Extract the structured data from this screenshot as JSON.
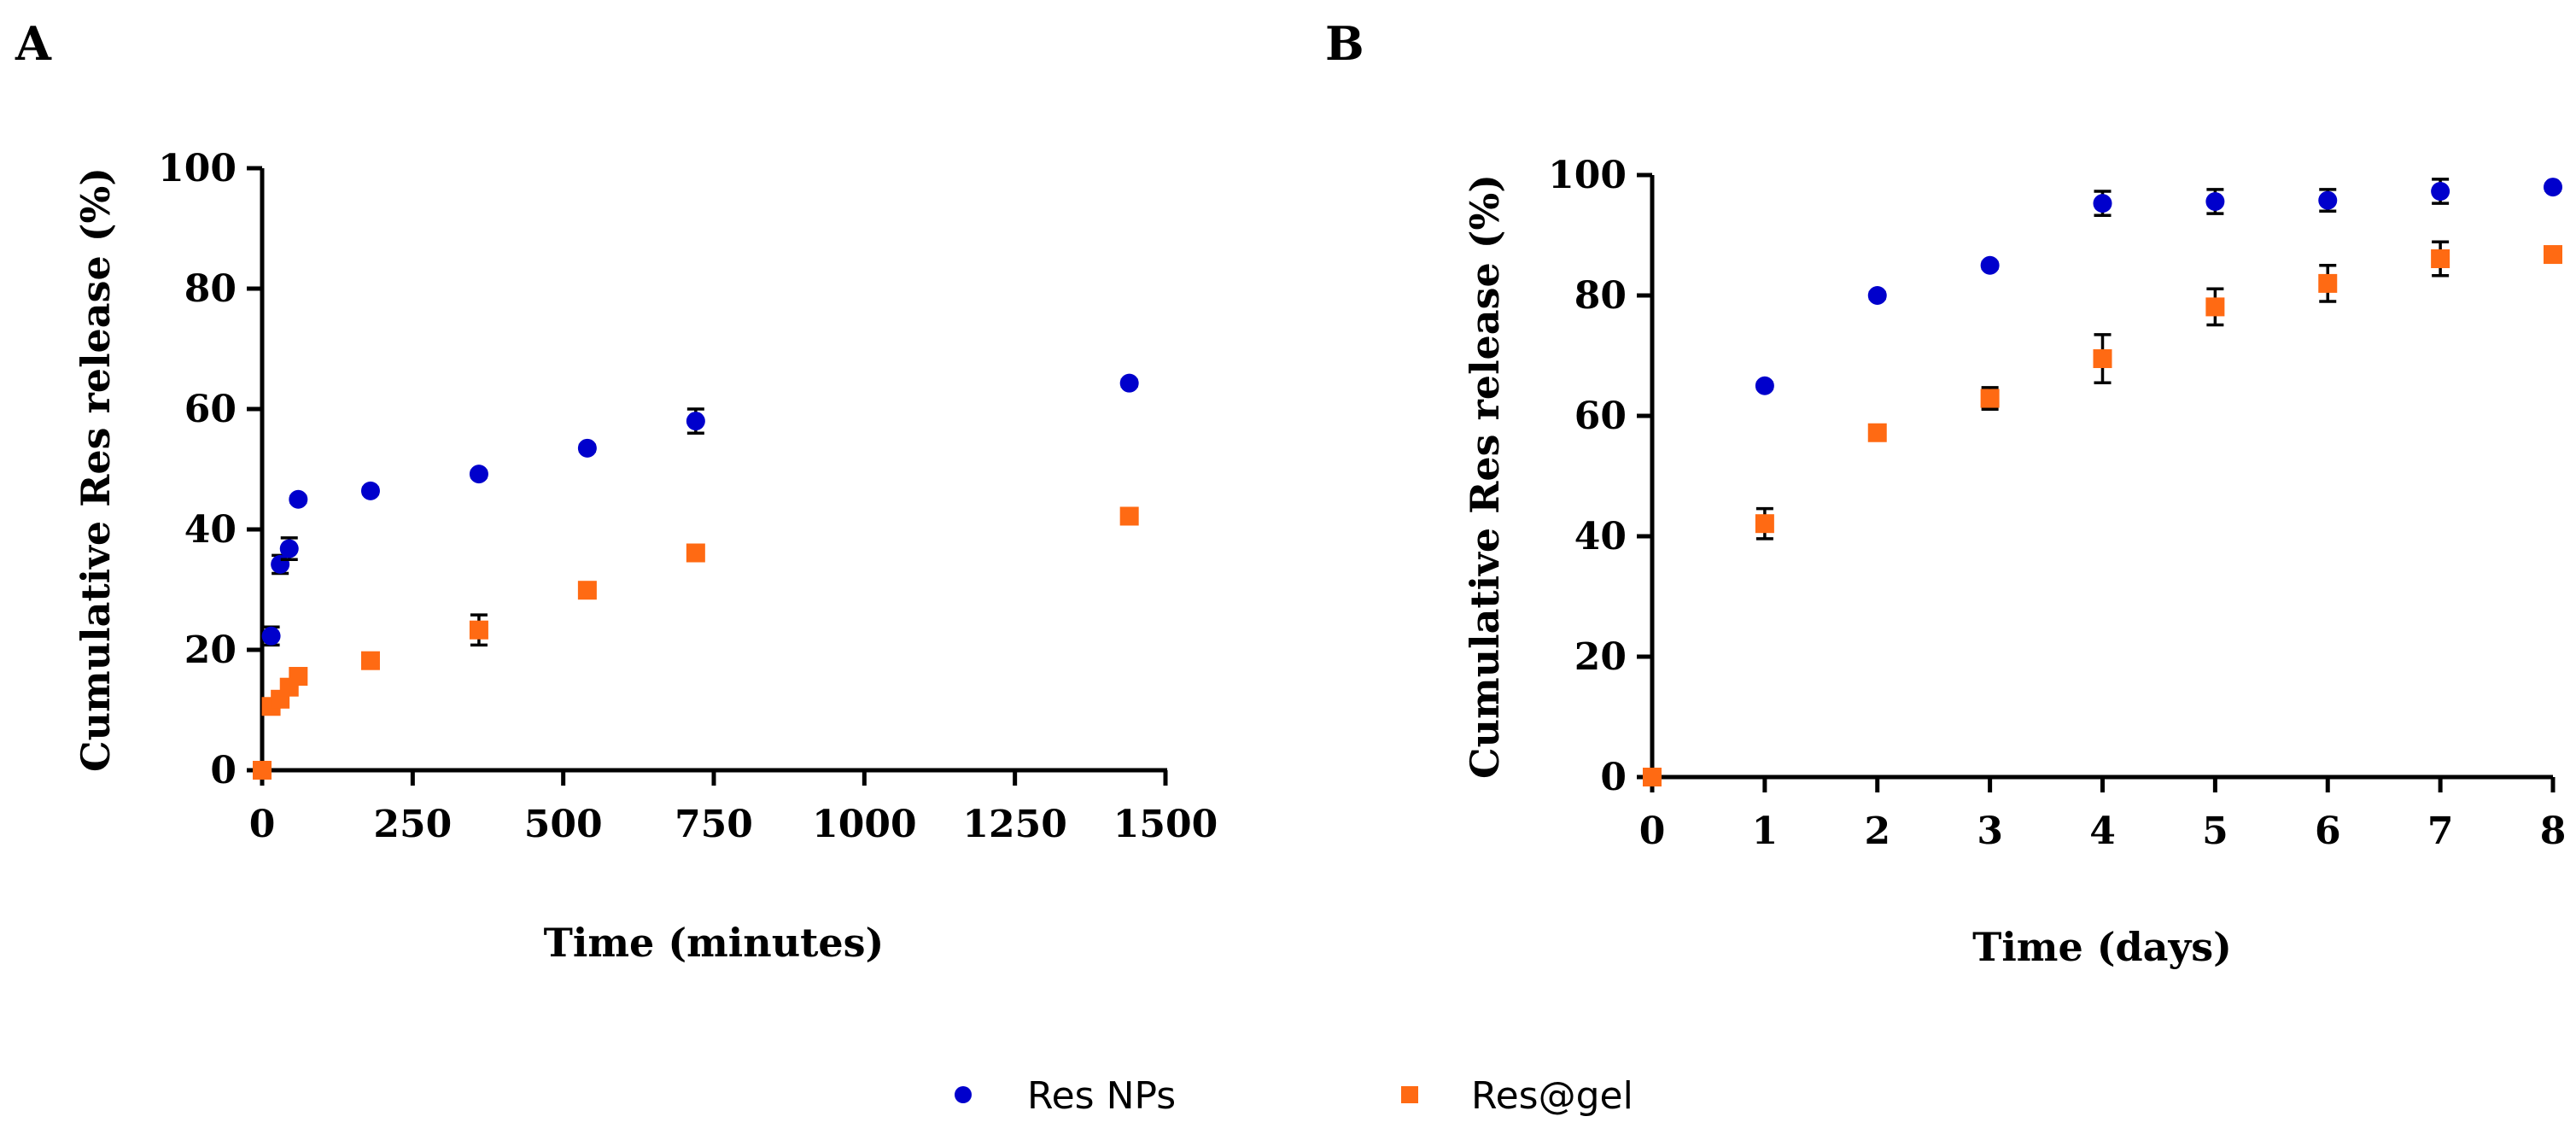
{
  "chart_data": [
    {
      "panel": "A",
      "type": "scatter",
      "title": "",
      "xlabel": "Time (minutes)",
      "ylabel": "Cumulative Res release (%)",
      "xlim": [
        0,
        1500
      ],
      "ylim": [
        0,
        100
      ],
      "xticks": [
        0,
        250,
        500,
        750,
        1000,
        1250,
        1500
      ],
      "yticks": [
        0,
        20,
        40,
        60,
        80,
        100
      ],
      "grid": false,
      "series": [
        {
          "name": "Res NPs",
          "color": "#0000cc",
          "marker": "circle",
          "x": [
            0,
            15,
            30,
            45,
            60,
            180,
            360,
            540,
            720,
            1440
          ],
          "y": [
            0,
            22.3,
            34.2,
            36.8,
            45.0,
            46.4,
            49.2,
            53.5,
            58.0,
            64.3
          ],
          "err": [
            0,
            1.5,
            1.5,
            1.8,
            0.5,
            0.5,
            0.5,
            0.5,
            2.0,
            0.5
          ]
        },
        {
          "name": "Res@gel",
          "color": "#ff6a13",
          "marker": "square",
          "x": [
            0,
            15,
            30,
            45,
            60,
            180,
            360,
            540,
            720,
            1440
          ],
          "y": [
            0,
            10.6,
            11.8,
            13.8,
            15.6,
            18.2,
            23.3,
            29.9,
            36.1,
            42.2
          ],
          "err": [
            0,
            1.2,
            0.5,
            0.5,
            0.5,
            0.5,
            2.5,
            0.5,
            0.5,
            0.5
          ]
        }
      ]
    },
    {
      "panel": "B",
      "type": "scatter",
      "title": "",
      "xlabel": "Time (days)",
      "ylabel": "Cumulative Res release (%)",
      "xlim": [
        0,
        8
      ],
      "ylim": [
        0,
        100
      ],
      "xticks": [
        0,
        1,
        2,
        3,
        4,
        5,
        6,
        7,
        8
      ],
      "yticks": [
        0,
        20,
        40,
        60,
        80,
        100
      ],
      "grid": false,
      "series": [
        {
          "name": "Res NPs",
          "color": "#0000cc",
          "marker": "circle",
          "x": [
            0,
            1,
            2,
            3,
            4,
            5,
            6,
            7,
            8
          ],
          "y": [
            0,
            65.0,
            80.0,
            85.0,
            95.3,
            95.6,
            95.8,
            97.3,
            98.0
          ],
          "err": [
            0,
            0.5,
            0.5,
            0.5,
            2.0,
            2.0,
            1.8,
            2.0,
            0.5
          ]
        },
        {
          "name": "Res@gel",
          "color": "#ff6a13",
          "marker": "square",
          "x": [
            0,
            1,
            2,
            3,
            4,
            5,
            6,
            7,
            8
          ],
          "y": [
            0,
            42.1,
            57.2,
            62.9,
            69.5,
            78.1,
            82.0,
            86.1,
            86.8
          ],
          "err": [
            0,
            2.5,
            0.5,
            1.8,
            4.0,
            3.0,
            3.0,
            2.8,
            0.5
          ]
        }
      ]
    }
  ],
  "legend": {
    "position": "bottom-center",
    "items": [
      {
        "label": "Res NPs",
        "color": "#0000cc",
        "marker": "circle"
      },
      {
        "label": "Res@gel",
        "color": "#ff6a13",
        "marker": "square"
      }
    ]
  }
}
